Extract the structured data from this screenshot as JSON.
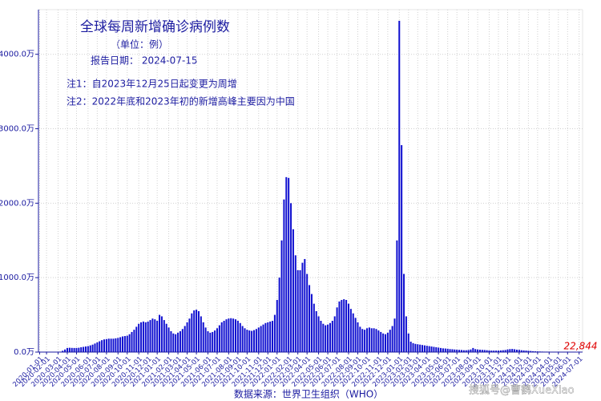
{
  "chart_data": {
    "type": "bar",
    "title": "全球每周新增确诊病例数",
    "subtitle": "（单位：例）",
    "report_date": "报告日期： 2024-07-15",
    "notes": [
      "注1：自2023年12月25日起变更为周增",
      "注2：2022年底和2023年初的新增高峰主要因为中国"
    ],
    "x_label": "数据来源：世界卫生组织（WHO）",
    "annotation": "22,844",
    "watermark": "搜狐号@曹鹤XueXiao",
    "color": "#1010d0",
    "annotation_color": "#e00000",
    "grid": true,
    "ylim": [
      0,
      4600
    ],
    "yticks": [
      {
        "value": 0,
        "label": "0.0万"
      },
      {
        "value": 1000,
        "label": "1000.0万"
      },
      {
        "value": 2000,
        "label": "2000.0万"
      },
      {
        "value": 3000,
        "label": "3000.0万"
      },
      {
        "value": 4000,
        "label": "4000.0万"
      }
    ],
    "categories": [
      "2020-01-01",
      null,
      null,
      "2020-02-01",
      null,
      null,
      null,
      null,
      "2020-03-01",
      null,
      null,
      null,
      "2020-04-01",
      null,
      null,
      null,
      "2020-05-01",
      null,
      null,
      null,
      null,
      "2020-06-01",
      null,
      null,
      null,
      "2020-07-01",
      null,
      null,
      null,
      "2020-08-01",
      null,
      null,
      null,
      null,
      "2020-09-01",
      null,
      null,
      null,
      "2020-10-01",
      null,
      null,
      null,
      null,
      "2020-11-01",
      null,
      null,
      null,
      "2020-12-01",
      null,
      null,
      null,
      "2021-01-01",
      null,
      null,
      null,
      null,
      "2021-02-01",
      null,
      null,
      null,
      "2021-03-01",
      null,
      null,
      null,
      "2021-04-01",
      null,
      null,
      null,
      "2021-05-01",
      null,
      null,
      null,
      null,
      "2021-06-01",
      null,
      null,
      null,
      "2021-07-01",
      null,
      null,
      null,
      null,
      "2021-08-01",
      null,
      null,
      null,
      "2021-09-01",
      null,
      null,
      null,
      "2021-10-01",
      null,
      null,
      null,
      null,
      "2021-11-01",
      null,
      null,
      null,
      "2021-12-01",
      null,
      null,
      null,
      "2022-01-01",
      null,
      null,
      null,
      null,
      "2022-02-01",
      null,
      null,
      null,
      "2022-03-01",
      null,
      null,
      null,
      "2022-04-01",
      null,
      null,
      null,
      null,
      "2022-05-01",
      null,
      null,
      null,
      "2022-06-01",
      null,
      null,
      null,
      "2022-07-01",
      null,
      null,
      null,
      null,
      "2022-08-01",
      null,
      null,
      null,
      "2022-09-01",
      null,
      null,
      null,
      "2022-10-01",
      null,
      null,
      null,
      null,
      "2022-11-01",
      null,
      null,
      null,
      "2022-12-01",
      null,
      null,
      null,
      null,
      "2023-01-01",
      null,
      null,
      null,
      "2023-02-01",
      null,
      null,
      null,
      "2023-03-01",
      null,
      null,
      null,
      "2023-04-01",
      null,
      null,
      null,
      null,
      "2023-05-01",
      null,
      null,
      null,
      "2023-06-01",
      null,
      null,
      null,
      "2023-07-01",
      null,
      null,
      null,
      null,
      "2023-08-01",
      null,
      null,
      null,
      "2023-09-01",
      null,
      null,
      null,
      null,
      "2023-10-01",
      null,
      null,
      null,
      "2023-11-01",
      null,
      null,
      null,
      "2023-12-01",
      null,
      null,
      null,
      null,
      "2024-01-01",
      null,
      null,
      null,
      "2024-02-01",
      null,
      null,
      null,
      "2024-03-01",
      null,
      null,
      null,
      null,
      "2024-04-01",
      null,
      null,
      null,
      "2024-05-01",
      null,
      null,
      null,
      "2024-06-01",
      null,
      null,
      null,
      null,
      "2024-07-01",
      null
    ],
    "values": [
      0.1,
      0.2,
      1,
      1.5,
      1.8,
      1.5,
      1.2,
      1.5,
      3,
      6,
      18,
      35,
      55,
      58,
      56,
      55,
      55,
      58,
      65,
      70,
      75,
      80,
      90,
      100,
      115,
      130,
      145,
      160,
      170,
      175,
      180,
      180,
      180,
      185,
      190,
      200,
      210,
      215,
      220,
      240,
      270,
      300,
      340,
      380,
      400,
      410,
      400,
      410,
      430,
      450,
      440,
      420,
      500,
      480,
      430,
      380,
      330,
      280,
      250,
      240,
      260,
      280,
      310,
      350,
      400,
      450,
      520,
      560,
      570,
      550,
      480,
      400,
      330,
      280,
      260,
      270,
      290,
      320,
      360,
      400,
      420,
      440,
      450,
      455,
      450,
      440,
      420,
      390,
      350,
      320,
      300,
      290,
      285,
      295,
      310,
      330,
      350,
      370,
      390,
      400,
      410,
      420,
      500,
      700,
      1000,
      1500,
      2050,
      2350,
      2340,
      2000,
      1650,
      1300,
      1100,
      1100,
      1200,
      1250,
      1050,
      900,
      780,
      650,
      550,
      480,
      420,
      380,
      360,
      370,
      390,
      420,
      480,
      600,
      680,
      700,
      710,
      700,
      650,
      580,
      520,
      460,
      400,
      340,
      310,
      300,
      320,
      330,
      320,
      320,
      310,
      290,
      270,
      250,
      240,
      260,
      300,
      350,
      450,
      1500,
      4450,
      2780,
      1050,
      480,
      250,
      140,
      120,
      110,
      105,
      100,
      95,
      90,
      85,
      80,
      75,
      70,
      65,
      60,
      55,
      50,
      48,
      45,
      40,
      38,
      35,
      32,
      30,
      28,
      25,
      25,
      28,
      35,
      55,
      40,
      35,
      32,
      30,
      28,
      25,
      22,
      20,
      20,
      20,
      20,
      22,
      25,
      28,
      35,
      40,
      42,
      38,
      32,
      30,
      25,
      22,
      20,
      18,
      15,
      12,
      10,
      9,
      8,
      7,
      6,
      6,
      5,
      5,
      4,
      4,
      4,
      3.5,
      3.5,
      3,
      3,
      3,
      2.8,
      2.5,
      2.5,
      2.3,
      2.2844
    ]
  }
}
